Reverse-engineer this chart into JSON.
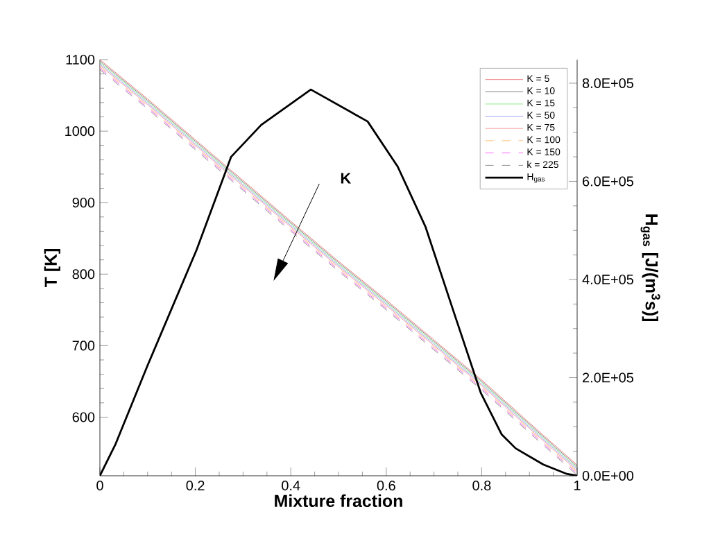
{
  "chart_data": {
    "type": "line",
    "xlabel": "Mixture fraction",
    "ylabel": "T [K]",
    "y2label": "H$_{gas}$ [J/(m$^{3}$s)]",
    "xlim": [
      0,
      1
    ],
    "xticks": [
      0,
      0.2,
      0.4,
      0.6,
      0.8,
      1
    ],
    "ylim": [
      518,
      1100
    ],
    "yticks": [
      600,
      700,
      800,
      900,
      1000,
      1100
    ],
    "y2lim": [
      0,
      848000
    ],
    "y2ticks": [
      {
        "value": 0,
        "label": "0.0E+00"
      },
      {
        "value": 200000,
        "label": "2.0E+05"
      },
      {
        "value": 400000,
        "label": "4.0E+05"
      },
      {
        "value": 600000,
        "label": "6.0E+05"
      },
      {
        "value": 800000,
        "label": "8.0E+05"
      }
    ],
    "legend": "top right",
    "annotations": [
      "K"
    ],
    "series": [
      {
        "name": "K = 5",
        "color": "#f08080",
        "line_style": "solid",
        "x": [
          0,
          0.1,
          0.2,
          0.3,
          0.4,
          0.5,
          0.6,
          0.7,
          0.8,
          0.9,
          1
        ],
        "values": [
          1100,
          1045,
          988,
          931,
          874,
          818,
          764,
          708,
          652,
          592,
          533
        ]
      },
      {
        "name": "K = 10",
        "color": "#808080",
        "line_style": "solid",
        "x": [
          0,
          0.1,
          0.2,
          0.3,
          0.4,
          0.5,
          0.6,
          0.7,
          0.8,
          0.9,
          1
        ],
        "values": [
          1098,
          1043,
          986,
          929,
          872,
          816,
          762,
          706,
          650,
          590,
          531
        ]
      },
      {
        "name": "K = 15",
        "color": "#90ee90",
        "line_style": "solid",
        "x": [
          0,
          0.1,
          0.2,
          0.3,
          0.4,
          0.5,
          0.6,
          0.7,
          0.8,
          0.9,
          1
        ],
        "values": [
          1096,
          1041,
          984,
          927,
          870,
          814,
          760,
          704,
          648,
          588,
          529
        ]
      },
      {
        "name": "K = 50",
        "color": "#a0a0ff",
        "line_style": "solid",
        "x": [
          0,
          0.1,
          0.2,
          0.3,
          0.4,
          0.5,
          0.6,
          0.7,
          0.8,
          0.9,
          1
        ],
        "values": [
          1094,
          1039,
          982,
          925,
          868,
          812,
          758,
          702,
          646,
          586,
          527
        ]
      },
      {
        "name": "K = 75",
        "color": "#f4a0a0",
        "line_style": "solid",
        "x": [
          0,
          0.1,
          0.2,
          0.3,
          0.4,
          0.5,
          0.6,
          0.7,
          0.8,
          0.9,
          1
        ],
        "values": [
          1092,
          1037,
          980,
          923,
          866,
          810,
          756,
          700,
          644,
          584,
          525
        ]
      },
      {
        "name": "K = 100",
        "color": "#ffc080",
        "line_style": "dashed",
        "x": [
          0,
          0.1,
          0.2,
          0.3,
          0.4,
          0.5,
          0.6,
          0.7,
          0.8,
          0.9,
          1
        ],
        "values": [
          1090,
          1035,
          978,
          921,
          864,
          808,
          754,
          698,
          642,
          582,
          523
        ]
      },
      {
        "name": "K = 150",
        "color": "#ff60ff",
        "line_style": "dashed",
        "x": [
          0,
          0.1,
          0.2,
          0.3,
          0.4,
          0.5,
          0.6,
          0.7,
          0.8,
          0.9,
          1
        ],
        "values": [
          1088,
          1033,
          976,
          919,
          862,
          806,
          752,
          696,
          640,
          580,
          521
        ]
      },
      {
        "name": "k = 225",
        "color": "#909090",
        "line_style": "dashed",
        "x": [
          0,
          0.1,
          0.2,
          0.3,
          0.4,
          0.5,
          0.6,
          0.7,
          0.8,
          0.9,
          1
        ],
        "values": [
          1086,
          1031,
          974,
          917,
          860,
          804,
          750,
          694,
          638,
          578,
          519
        ]
      },
      {
        "name": "H$_{gas}$",
        "color": "#000000",
        "line_style": "solid",
        "axis": "y2",
        "x": [
          0,
          0.033,
          0.1,
          0.2025,
          0.275,
          0.338,
          0.442,
          0.561,
          0.624,
          0.682,
          0.74,
          0.798,
          0.842,
          0.871,
          0.929,
          0.978,
          1
        ],
        "values": [
          0,
          65000,
          225000,
          460000,
          650000,
          715000,
          787000,
          722000,
          630000,
          508000,
          338000,
          169000,
          84000,
          56000,
          23000,
          4000,
          0
        ]
      }
    ]
  }
}
